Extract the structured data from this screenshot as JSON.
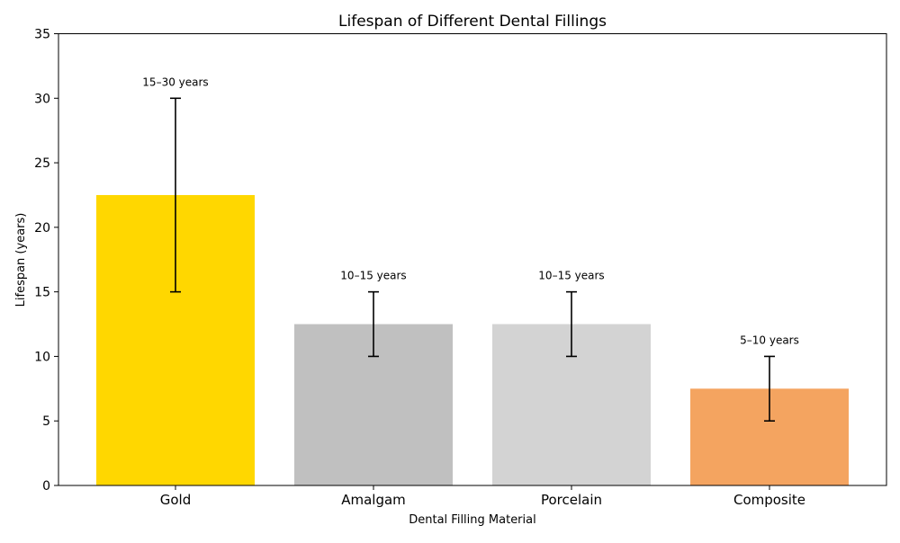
{
  "chart_data": {
    "type": "bar",
    "title": "Lifespan of Different Dental Fillings",
    "xlabel": "Dental Filling Material",
    "ylabel": "Lifespan (years)",
    "ylim": [
      0,
      35
    ],
    "yticks": [
      0,
      5,
      10,
      15,
      20,
      25,
      30,
      35
    ],
    "grid": false,
    "categories": [
      "Gold",
      "Amalgam",
      "Porcelain",
      "Composite"
    ],
    "values": [
      22.5,
      12.5,
      12.5,
      7.5
    ],
    "error_low": [
      15,
      10,
      10,
      5
    ],
    "error_high": [
      30,
      15,
      15,
      10
    ],
    "annotations": [
      "15–30 years",
      "10–15 years",
      "10–15 years",
      "5–10 years"
    ],
    "colors": [
      "#FFD700",
      "#C0C0C0",
      "#D3D3D3",
      "#F4A460"
    ]
  }
}
